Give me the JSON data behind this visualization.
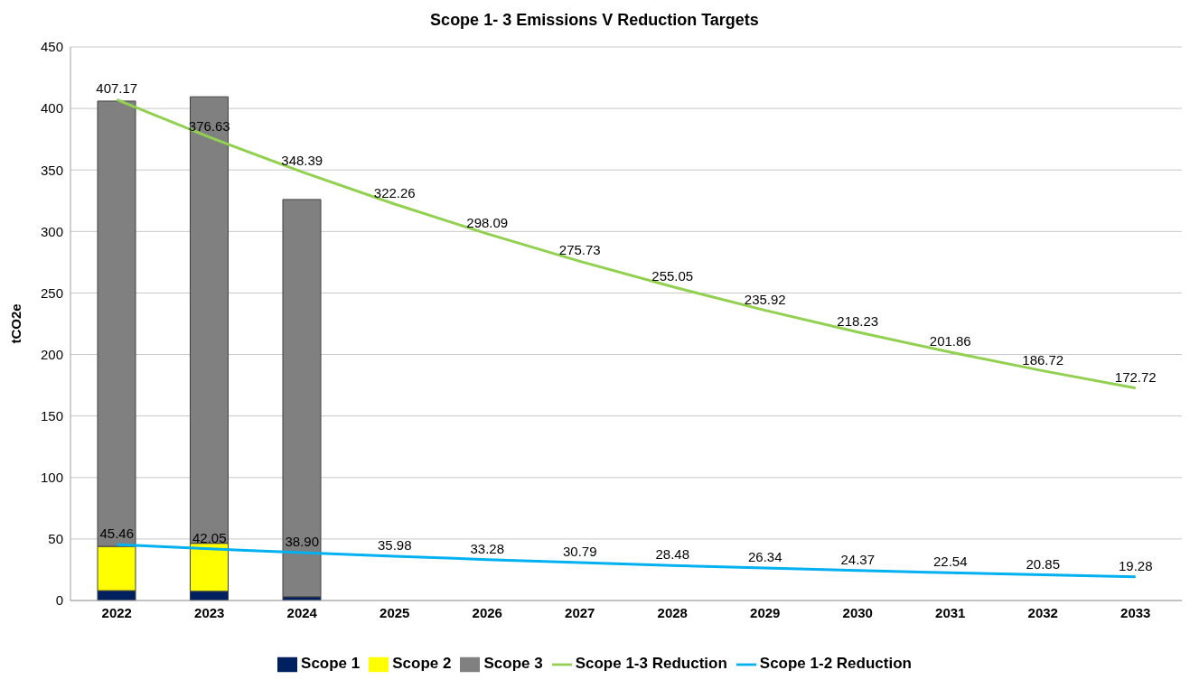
{
  "chart_data": {
    "type": "bar",
    "title": "Scope 1- 3 Emissions V Reduction Targets",
    "ylabel": "tCO2e",
    "stacked": true,
    "categories": [
      "2022",
      "2023",
      "2024",
      "2025",
      "2026",
      "2027",
      "2028",
      "2029",
      "2030",
      "2031",
      "2032",
      "2033"
    ],
    "series": [
      {
        "name": "Scope 1",
        "color": "#002060",
        "values": [
          8,
          7.5,
          3,
          null,
          null,
          null,
          null,
          null,
          null,
          null,
          null,
          null
        ]
      },
      {
        "name": "Scope 2",
        "color": "#ffff00",
        "values": [
          36,
          39,
          null,
          null,
          null,
          null,
          null,
          null,
          null,
          null,
          null,
          null
        ]
      },
      {
        "name": "Scope 3",
        "color": "#808080",
        "values": [
          362,
          363,
          323,
          null,
          null,
          null,
          null,
          null,
          null,
          null,
          null,
          null
        ]
      },
      {
        "name": "Scope 1-3 Reduction",
        "type": "line",
        "color": "#92d050",
        "values": [
          407.17,
          376.63,
          348.39,
          322.26,
          298.09,
          275.73,
          255.05,
          235.92,
          218.23,
          201.86,
          186.72,
          172.72
        ],
        "value_labels": [
          "407.17",
          "376.63",
          "348.39",
          "322.26",
          "298.09",
          "275.73",
          "255.05",
          "235.92",
          "218.23",
          "201.86",
          "186.72",
          "172.72"
        ]
      },
      {
        "name": "Scope 1-2 Reduction",
        "type": "line",
        "color": "#00b0f0",
        "values": [
          45.46,
          42.05,
          38.9,
          35.98,
          33.28,
          30.79,
          28.48,
          26.34,
          24.37,
          22.54,
          20.85,
          19.28
        ],
        "value_labels": [
          "45.46",
          "42.05",
          "38.90",
          "35.98",
          "33.28",
          "30.79",
          "28.48",
          "26.34",
          "24.37",
          "22.54",
          "20.85",
          "19.28"
        ]
      }
    ],
    "ylim": [
      0,
      450
    ],
    "yticks": [
      0,
      50,
      100,
      150,
      200,
      250,
      300,
      350,
      400,
      450
    ],
    "grid": "y",
    "legend": "bottom",
    "marker": "none"
  }
}
